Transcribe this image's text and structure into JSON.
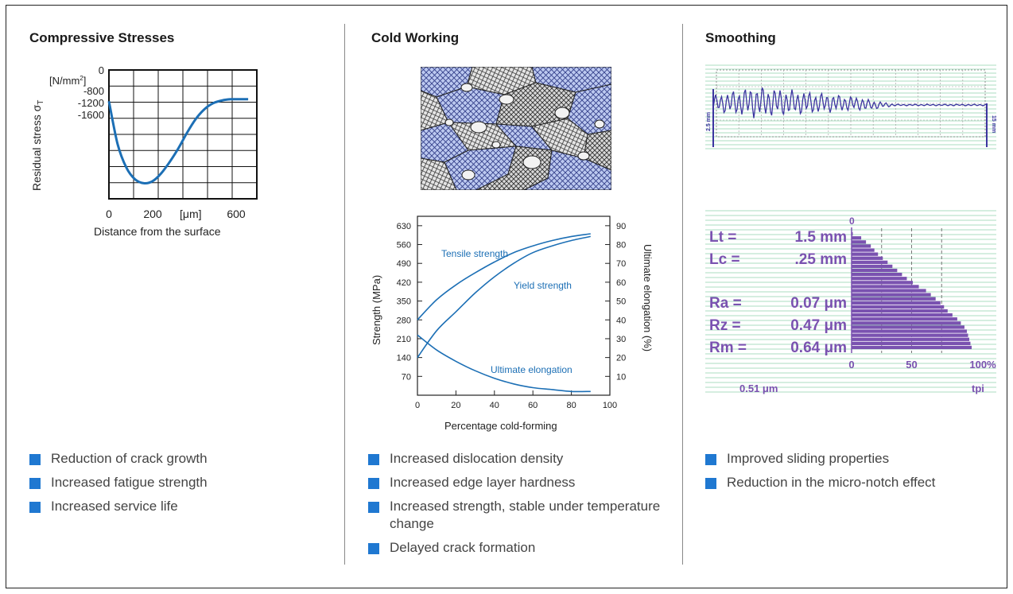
{
  "sections": [
    {
      "title": "Compressive Stresses",
      "bullets": [
        "Reduction of crack growth",
        "Increased fatigue strength",
        "Increased service life"
      ]
    },
    {
      "title": "Cold Working",
      "bullets": [
        "Increased dislocation density",
        "Increased edge layer hardness",
        "Increased strength, stable under temperature change",
        "Delayed crack formation"
      ]
    },
    {
      "title": "Smoothing",
      "bullets": [
        "Improved sliding properties",
        "Reduction in the micro-notch effect"
      ]
    }
  ],
  "colors": {
    "accent": "#1f78d1",
    "curve": "#1c6fb5",
    "profile": "#3c35a0",
    "bearing": "#7a52b0",
    "grid": "#8fd1ad"
  },
  "chart_data": [
    {
      "type": "line",
      "name": "residual-stress",
      "ylabel": "Residual stress σ",
      "ylabel_sub": "T",
      "yunit": "[N/mm",
      "yunit_sup": "2",
      "yunit_close": "]",
      "xlabel": "Distance from the surface",
      "xunit": "[μm]",
      "xticks": [
        "0",
        "200",
        "600"
      ],
      "yticks": [
        "0",
        "-800",
        "-1200",
        "-1600"
      ],
      "series": [
        {
          "x": [
            0,
            40,
            80,
            120,
            160,
            200,
            240,
            280,
            320,
            360,
            400,
            440,
            480,
            520,
            560,
            600,
            640
          ],
          "y": [
            -800,
            -1900,
            -2500,
            -2800,
            -2900,
            -2850,
            -2650,
            -2350,
            -2000,
            -1600,
            -1250,
            -1000,
            -850,
            -780,
            -750,
            -750,
            -750
          ]
        }
      ]
    },
    {
      "type": "line",
      "name": "cold-forming",
      "xlabel": "Percentage cold-forming",
      "ylabel": "Strength (MPa)",
      "ylabel2": "Ultimate elongation (%)",
      "xticks": [
        "0",
        "20",
        "40",
        "60",
        "80",
        "100"
      ],
      "yticks": [
        "630",
        "560",
        "490",
        "420",
        "350",
        "280",
        "210",
        "140",
        "70"
      ],
      "y2ticks": [
        "90",
        "80",
        "70",
        "60",
        "50",
        "40",
        "30",
        "20",
        "10"
      ],
      "xlim": [
        0,
        100
      ],
      "ylim": [
        0,
        665
      ],
      "y2lim": [
        0,
        95
      ],
      "series": [
        {
          "name": "Tensile strength",
          "axis": "left",
          "x": [
            0,
            10,
            20,
            30,
            40,
            50,
            60,
            70,
            80,
            90
          ],
          "y": [
            280,
            355,
            410,
            455,
            495,
            530,
            555,
            575,
            590,
            600
          ]
        },
        {
          "name": "Yield strength",
          "axis": "left",
          "x": [
            0,
            10,
            20,
            30,
            40,
            50,
            60,
            70,
            80,
            90
          ],
          "y": [
            140,
            240,
            310,
            380,
            440,
            490,
            530,
            555,
            575,
            590
          ]
        },
        {
          "name": "Ultimate elongation",
          "axis": "right",
          "x": [
            0,
            10,
            20,
            30,
            40,
            50,
            60,
            70,
            80,
            90
          ],
          "y": [
            32,
            24,
            18,
            13,
            9,
            6,
            4,
            3,
            2,
            2
          ]
        }
      ]
    },
    {
      "type": "line",
      "name": "surface-profile",
      "left_label": "2.5 mm",
      "right_label": "15 mm"
    },
    {
      "type": "bar",
      "name": "bearing-ratio",
      "params": [
        {
          "label": "Lt =",
          "value": "1.5 mm"
        },
        {
          "label": "Lc =",
          "value": ".25 mm"
        },
        {
          "label": "Ra =",
          "value": "0.07 μm"
        },
        {
          "label": "Rz =",
          "value": "0.47 μm"
        },
        {
          "label": "Rm =",
          "value": "0.64 μm"
        }
      ],
      "top_label": "0",
      "xticks": [
        "0",
        "50",
        "100%"
      ],
      "bottom_left": "0.51 μm",
      "bottom_right": "tpi",
      "xlim": [
        0,
        100
      ],
      "bars": [
        1,
        8,
        12,
        16,
        19,
        22,
        26,
        30,
        34,
        38,
        42,
        46,
        51,
        56,
        62,
        66,
        70,
        74,
        77,
        80,
        84,
        88,
        91,
        94,
        96,
        97,
        98,
        99,
        100
      ]
    }
  ]
}
